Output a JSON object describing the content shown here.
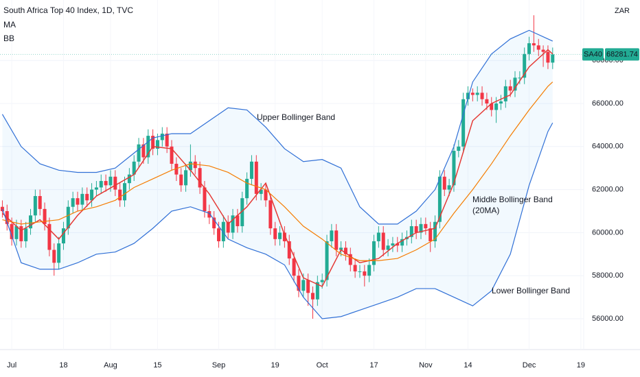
{
  "chart_data": {
    "type": "candlestick",
    "title": "South Africa Top 40 Index, 1D, TVC",
    "indicators": [
      "MA",
      "BB"
    ],
    "currency": "ZAR",
    "symbol": "SA40",
    "last_price": 68281.74,
    "up_color": "#22ab94",
    "down_color": "#f23645",
    "ylim": [
      54567,
      70809
    ],
    "yticks": [
      {
        "value": 56000,
        "label": "56000.00"
      },
      {
        "value": 58000,
        "label": "58000.00"
      },
      {
        "value": 60000,
        "label": "60000.00"
      },
      {
        "value": 62000,
        "label": "62000.00"
      },
      {
        "value": 64000,
        "label": "64000.00"
      },
      {
        "value": 66000,
        "label": "66000.00"
      },
      {
        "value": 68000,
        "label": "68000.00"
      }
    ],
    "xlim": [
      -0.5,
      123.6
    ],
    "xticks": [
      {
        "value": 2,
        "label": "Jul"
      },
      {
        "value": 13,
        "label": "18"
      },
      {
        "value": 23,
        "label": "Aug"
      },
      {
        "value": 33,
        "label": "15"
      },
      {
        "value": 46,
        "label": "Sep"
      },
      {
        "value": 58,
        "label": "19"
      },
      {
        "value": 68,
        "label": "Oct"
      },
      {
        "value": 79,
        "label": "17"
      },
      {
        "value": 90,
        "label": "Nov"
      },
      {
        "value": 99,
        "label": "14"
      },
      {
        "value": 112,
        "label": "Dec"
      },
      {
        "value": 123,
        "label": "19"
      }
    ],
    "open": [
      61200,
      61000,
      60400,
      59700,
      60300,
      59600,
      60200,
      60800,
      61700,
      61100,
      60400,
      59200,
      58600,
      59500,
      60200,
      61200,
      61600,
      61300,
      61800,
      61500,
      62000,
      62100,
      62400,
      62200,
      62600,
      62000,
      61500,
      62300,
      62700,
      63300,
      64100,
      63500,
      64500,
      63900,
      64300,
      64600,
      64000,
      63200,
      62700,
      62200,
      62900,
      63300,
      63000,
      62100,
      61000,
      60700,
      60200,
      59600,
      60500,
      60000,
      60800,
      60300,
      61600,
      62500,
      63300,
      61800,
      62000,
      61500,
      60200,
      59700,
      60000,
      59600,
      58800,
      58000,
      57300,
      57800,
      57200,
      56900,
      57700,
      57800,
      59600,
      60100,
      59200,
      59300,
      59000,
      58500,
      58200,
      58200,
      58000,
      58500,
      59600,
      60000,
      59200,
      59400,
      59500,
      59400,
      59700,
      59800,
      60300,
      60000,
      60400,
      60200,
      59600,
      60500,
      62600,
      62000,
      62200,
      63800,
      64000,
      66200,
      66500,
      66400,
      66500,
      66200,
      66000,
      65700,
      66000,
      66100,
      66800,
      66600,
      67200,
      67200,
      68300,
      68800,
      68700,
      68500,
      68400,
      67900
    ],
    "high": [
      61500,
      61300,
      60700,
      60600,
      60600,
      60500,
      61100,
      62000,
      62000,
      61400,
      60700,
      59500,
      59800,
      60500,
      61500,
      61900,
      61900,
      62100,
      62100,
      62300,
      62400,
      62700,
      62700,
      62900,
      62900,
      62300,
      62600,
      63000,
      63600,
      64400,
      64400,
      64800,
      64800,
      64600,
      64900,
      64900,
      64300,
      63500,
      63000,
      63200,
      64100,
      63600,
      63300,
      62400,
      61300,
      61000,
      60500,
      60800,
      60800,
      61100,
      61100,
      61900,
      62800,
      63600,
      63600,
      62300,
      62300,
      61800,
      60500,
      60300,
      60300,
      59900,
      59100,
      58300,
      58100,
      58100,
      57500,
      58000,
      58100,
      59900,
      60400,
      60400,
      59600,
      59600,
      59300,
      58800,
      58500,
      58500,
      58800,
      59900,
      60300,
      60300,
      59700,
      59800,
      59800,
      60000,
      60100,
      60600,
      60600,
      60700,
      60700,
      60500,
      60800,
      62900,
      62900,
      62500,
      64100,
      64300,
      66500,
      66800,
      66700,
      66800,
      66800,
      66500,
      66300,
      66300,
      66400,
      67100,
      67100,
      67500,
      67500,
      68600,
      69100,
      70100,
      69000,
      68700,
      68700,
      68600
    ],
    "low": [
      60700,
      60100,
      59400,
      59400,
      59300,
      59300,
      59900,
      60500,
      60800,
      60100,
      58900,
      58000,
      58300,
      59200,
      59900,
      60900,
      61000,
      61000,
      61200,
      61200,
      61700,
      61800,
      61900,
      61900,
      61700,
      61200,
      61200,
      62000,
      62400,
      63000,
      63200,
      63200,
      63600,
      63600,
      64000,
      63700,
      62900,
      62400,
      61900,
      61900,
      62600,
      62700,
      61800,
      60700,
      60400,
      59900,
      59300,
      59300,
      59700,
      59700,
      60000,
      60000,
      61300,
      62200,
      61500,
      61500,
      61200,
      59900,
      59400,
      59400,
      59300,
      58500,
      57700,
      57000,
      57000,
      56600,
      56000,
      56600,
      57400,
      57500,
      59300,
      58900,
      58900,
      58700,
      58200,
      57900,
      57900,
      57500,
      57700,
      58200,
      59300,
      58900,
      58900,
      59100,
      59100,
      59100,
      59400,
      59500,
      59700,
      59700,
      59900,
      59100,
      59300,
      60200,
      61700,
      61700,
      61900,
      63500,
      63700,
      65900,
      66100,
      66100,
      65900,
      65700,
      65400,
      65100,
      65700,
      65800,
      66300,
      66300,
      66900,
      66900,
      68000,
      68400,
      68200,
      67700,
      67600,
      67600
    ],
    "close": [
      61000,
      60400,
      59700,
      60300,
      59600,
      60200,
      60800,
      61700,
      61100,
      60400,
      59200,
      58600,
      59500,
      60200,
      61200,
      61600,
      61300,
      61800,
      61500,
      62000,
      62100,
      62400,
      62200,
      62600,
      62000,
      61500,
      62300,
      62700,
      63300,
      64100,
      63500,
      64500,
      63900,
      64300,
      64600,
      64000,
      63200,
      62700,
      62200,
      62900,
      63300,
      63000,
      62100,
      61000,
      60700,
      60200,
      59600,
      60500,
      60000,
      60800,
      60300,
      61600,
      62500,
      63300,
      61800,
      62000,
      61500,
      60200,
      59700,
      60000,
      59600,
      58800,
      58000,
      57300,
      57800,
      57200,
      56900,
      57700,
      57800,
      59600,
      60100,
      59200,
      59300,
      59000,
      58500,
      58200,
      58200,
      58000,
      58500,
      59600,
      60000,
      59200,
      59400,
      59500,
      59400,
      59700,
      59800,
      60300,
      60000,
      60400,
      60200,
      59600,
      60500,
      62600,
      62000,
      62200,
      63800,
      64000,
      66200,
      66500,
      66400,
      66500,
      66200,
      66000,
      65700,
      66000,
      66100,
      66800,
      66600,
      67200,
      67200,
      68300,
      68800,
      68700,
      68500,
      68400,
      67900,
      68281.74
    ],
    "series": [
      {
        "name": "MA",
        "color": "#e53935",
        "x": [
          0,
          4,
          8,
          12,
          16,
          20,
          24,
          28,
          32,
          36,
          40,
          44,
          48,
          52,
          56,
          60,
          64,
          68,
          72,
          76,
          80,
          84,
          88,
          92,
          96,
          100,
          104,
          108,
          112,
          116,
          117
        ],
        "values": [
          60900,
          60100,
          60600,
          59700,
          60800,
          61700,
          62200,
          62700,
          64000,
          63900,
          62900,
          61800,
          60400,
          61200,
          62300,
          59900,
          57900,
          57500,
          59200,
          58600,
          58800,
          59500,
          60000,
          60200,
          62300,
          65200,
          66000,
          66400,
          67700,
          68500,
          68300
        ]
      },
      {
        "name": "Upper Bollinger Band",
        "color": "#2f6fd6",
        "x": [
          0,
          4,
          8,
          12,
          16,
          20,
          24,
          28,
          32,
          36,
          40,
          44,
          48,
          52,
          56,
          60,
          64,
          68,
          72,
          76,
          80,
          84,
          88,
          92,
          96,
          100,
          104,
          108,
          112,
          116,
          117
        ],
        "values": [
          65500,
          64000,
          63200,
          62900,
          62800,
          62800,
          63000,
          63700,
          64400,
          64600,
          64600,
          65200,
          65800,
          65700,
          64900,
          63900,
          63300,
          63400,
          63000,
          61200,
          60400,
          60400,
          61000,
          62000,
          64000,
          67000,
          68300,
          69000,
          69400,
          69000,
          68900
        ]
      },
      {
        "name": "Middle Bollinger Band",
        "color": "#f57c00",
        "x": [
          0,
          4,
          8,
          12,
          16,
          20,
          24,
          28,
          32,
          36,
          40,
          44,
          48,
          52,
          56,
          60,
          64,
          68,
          72,
          76,
          80,
          84,
          88,
          92,
          96,
          100,
          104,
          108,
          112,
          116,
          117
        ],
        "values": [
          60600,
          60400,
          60500,
          60600,
          61000,
          61200,
          61500,
          62100,
          62500,
          62900,
          63200,
          63100,
          62800,
          62300,
          62000,
          61200,
          60300,
          59700,
          59000,
          58700,
          58700,
          58800,
          59200,
          59700,
          60900,
          62000,
          63200,
          64500,
          65700,
          66800,
          67000
        ]
      },
      {
        "name": "Lower Bollinger Band",
        "color": "#2f6fd6",
        "x": [
          0,
          4,
          8,
          12,
          16,
          20,
          24,
          28,
          32,
          36,
          40,
          44,
          48,
          52,
          56,
          60,
          64,
          68,
          72,
          76,
          80,
          84,
          88,
          92,
          96,
          100,
          104,
          108,
          112,
          116,
          117
        ],
        "values": [
          61100,
          58600,
          58300,
          58300,
          58600,
          59000,
          59100,
          59500,
          60200,
          61000,
          61200,
          60900,
          59700,
          59300,
          59000,
          58500,
          57000,
          56000,
          56100,
          56400,
          56700,
          57000,
          57400,
          57400,
          57000,
          56600,
          57300,
          59000,
          62200,
          64700,
          65100
        ]
      }
    ],
    "middle_note": "(20MA)"
  }
}
